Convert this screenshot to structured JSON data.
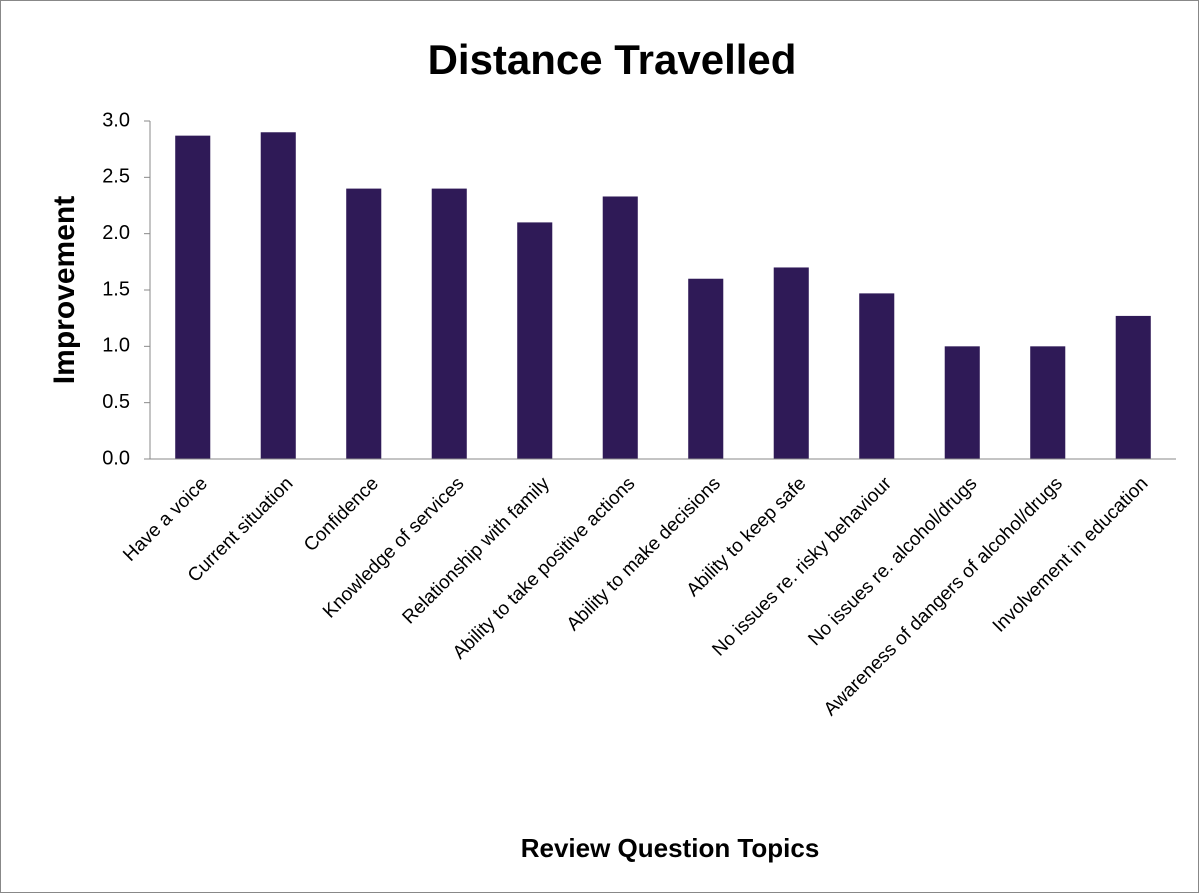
{
  "chart_data": {
    "type": "bar",
    "title": "Distance Travelled",
    "x_label": "Review Question  Topics",
    "y_label": "Improvement",
    "categories": [
      "Have a voice",
      "Current situation",
      "Confidence",
      "Knowledge of services",
      "Relationship with family",
      "Ability to take positive actions",
      "Ability to make decisions",
      "Ability to keep safe",
      "No issues re. risky behaviour",
      "No issues re. alcohol/drugs",
      "Awareness of dangers of alcohol/drugs",
      "Involvement in education"
    ],
    "values": [
      2.87,
      2.9,
      2.4,
      2.4,
      2.1,
      2.33,
      1.6,
      1.7,
      1.47,
      1.0,
      1.0,
      1.27
    ],
    "color": "#2f1a57",
    "ylim": [
      0,
      3
    ],
    "yticks": [
      {
        "value": 0,
        "label": "0.0"
      },
      {
        "value": 0.5,
        "label": "0.5"
      },
      {
        "value": 1,
        "label": "1.0"
      },
      {
        "value": 1.5,
        "label": "1.5"
      },
      {
        "value": 2,
        "label": "2.0"
      },
      {
        "value": 2.5,
        "label": "2.5"
      },
      {
        "value": 3,
        "label": "3.0"
      }
    ],
    "grid": false
  }
}
